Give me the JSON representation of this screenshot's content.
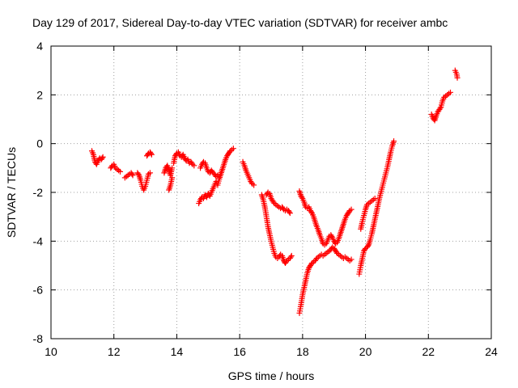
{
  "chart_data": {
    "type": "scatter",
    "title": "Day 129 of 2017, Sidereal Day-to-day VTEC variation (SDTVAR) for receiver ambc",
    "xlabel": "GPS time / hours",
    "ylabel": "SDTVAR / TECUs",
    "xlim": [
      10,
      24
    ],
    "ylim": [
      -8,
      4
    ],
    "xticks": [
      10,
      12,
      14,
      16,
      18,
      20,
      22,
      24
    ],
    "yticks": [
      -8,
      -6,
      -4,
      -2,
      0,
      2,
      4
    ],
    "grid": true,
    "marker": "+",
    "color": "#ff0000",
    "series": [
      {
        "name": "SDTVAR",
        "segments": [
          [
            [
              11.3,
              -0.3
            ],
            [
              11.35,
              -0.45
            ],
            [
              11.4,
              -0.75
            ],
            [
              11.45,
              -0.85
            ],
            [
              11.5,
              -0.7
            ],
            [
              11.55,
              -0.6
            ],
            [
              11.6,
              -0.65
            ],
            [
              11.65,
              -0.55
            ]
          ],
          [
            [
              11.9,
              -1.0
            ],
            [
              11.95,
              -0.9
            ],
            [
              12.0,
              -0.85
            ],
            [
              12.05,
              -1.0
            ],
            [
              12.1,
              -1.05
            ],
            [
              12.15,
              -1.1
            ],
            [
              12.2,
              -1.15
            ]
          ],
          [
            [
              12.35,
              -1.4
            ],
            [
              12.4,
              -1.35
            ],
            [
              12.45,
              -1.3
            ],
            [
              12.5,
              -1.25
            ],
            [
              12.55,
              -1.2
            ],
            [
              12.6,
              -1.3
            ]
          ],
          [
            [
              12.75,
              -1.2
            ],
            [
              12.8,
              -1.3
            ],
            [
              12.85,
              -1.5
            ],
            [
              12.9,
              -1.75
            ],
            [
              12.95,
              -1.9
            ],
            [
              13.0,
              -1.75
            ],
            [
              13.05,
              -1.5
            ],
            [
              13.1,
              -1.25
            ],
            [
              13.15,
              -1.2
            ]
          ],
          [
            [
              13.05,
              -0.5
            ],
            [
              13.1,
              -0.4
            ],
            [
              13.15,
              -0.35
            ],
            [
              13.2,
              -0.45
            ]
          ],
          [
            [
              13.6,
              -1.2
            ],
            [
              13.65,
              -1.0
            ],
            [
              13.7,
              -0.9
            ],
            [
              13.75,
              -1.1
            ],
            [
              13.8,
              -1.3
            ],
            [
              13.85,
              -1.0
            ]
          ],
          [
            [
              13.75,
              -1.9
            ],
            [
              13.8,
              -1.7
            ],
            [
              13.85,
              -1.4
            ]
          ],
          [
            [
              13.9,
              -0.8
            ],
            [
              13.95,
              -0.5
            ],
            [
              14.0,
              -0.4
            ],
            [
              14.05,
              -0.35
            ],
            [
              14.1,
              -0.5
            ],
            [
              14.15,
              -0.55
            ],
            [
              14.2,
              -0.45
            ],
            [
              14.25,
              -0.6
            ],
            [
              14.3,
              -0.7
            ],
            [
              14.35,
              -0.65
            ],
            [
              14.4,
              -0.8
            ],
            [
              14.45,
              -0.75
            ],
            [
              14.5,
              -0.85
            ],
            [
              14.55,
              -0.9
            ]
          ],
          [
            [
              14.75,
              -1.0
            ],
            [
              14.8,
              -0.85
            ],
            [
              14.85,
              -0.75
            ],
            [
              14.9,
              -0.8
            ],
            [
              14.95,
              -1.0
            ],
            [
              15.0,
              -1.15
            ],
            [
              15.05,
              -1.2
            ],
            [
              15.1,
              -1.1
            ],
            [
              15.15,
              -1.2
            ],
            [
              15.2,
              -1.25
            ],
            [
              15.25,
              -1.35
            ],
            [
              15.3,
              -1.3
            ]
          ],
          [
            [
              14.7,
              -2.45
            ],
            [
              14.75,
              -2.3
            ],
            [
              14.8,
              -2.2
            ],
            [
              14.85,
              -2.25
            ],
            [
              14.9,
              -2.1
            ],
            [
              14.95,
              -2.2
            ],
            [
              15.0,
              -2.05
            ],
            [
              15.05,
              -2.15
            ],
            [
              15.1,
              -2.0
            ],
            [
              15.15,
              -1.85
            ],
            [
              15.2,
              -1.7
            ],
            [
              15.25,
              -1.55
            ],
            [
              15.3,
              -1.7
            ],
            [
              15.35,
              -1.45
            ],
            [
              15.4,
              -1.25
            ],
            [
              15.45,
              -1.05
            ],
            [
              15.5,
              -0.85
            ],
            [
              15.55,
              -0.65
            ],
            [
              15.6,
              -0.5
            ],
            [
              15.65,
              -0.4
            ],
            [
              15.7,
              -0.3
            ],
            [
              15.75,
              -0.25
            ],
            [
              15.8,
              -0.2
            ]
          ],
          [
            [
              16.1,
              -0.75
            ],
            [
              16.15,
              -0.9
            ],
            [
              16.2,
              -1.1
            ],
            [
              16.25,
              -1.25
            ],
            [
              16.3,
              -1.4
            ],
            [
              16.35,
              -1.55
            ],
            [
              16.4,
              -1.65
            ],
            [
              16.45,
              -1.7
            ]
          ],
          [
            [
              16.7,
              -2.1
            ],
            [
              16.75,
              -2.3
            ],
            [
              16.8,
              -2.6
            ],
            [
              16.85,
              -3.0
            ],
            [
              16.9,
              -3.4
            ],
            [
              16.95,
              -3.7
            ],
            [
              17.0,
              -4.0
            ],
            [
              17.05,
              -4.25
            ],
            [
              17.1,
              -4.5
            ],
            [
              17.15,
              -4.65
            ],
            [
              17.2,
              -4.7
            ],
            [
              17.25,
              -4.65
            ],
            [
              17.3,
              -4.55
            ],
            [
              17.35,
              -4.6
            ],
            [
              17.4,
              -4.8
            ],
            [
              17.45,
              -4.9
            ],
            [
              17.5,
              -4.8
            ],
            [
              17.55,
              -4.75
            ],
            [
              17.6,
              -4.7
            ],
            [
              17.65,
              -4.6
            ]
          ],
          [
            [
              16.85,
              -2.1
            ],
            [
              16.9,
              -2.0
            ],
            [
              16.95,
              -2.05
            ],
            [
              17.0,
              -2.25
            ],
            [
              17.05,
              -2.35
            ],
            [
              17.1,
              -2.45
            ],
            [
              17.15,
              -2.5
            ],
            [
              17.2,
              -2.55
            ],
            [
              17.25,
              -2.6
            ],
            [
              17.3,
              -2.65
            ],
            [
              17.35,
              -2.6
            ],
            [
              17.4,
              -2.7
            ],
            [
              17.45,
              -2.75
            ],
            [
              17.5,
              -2.7
            ],
            [
              17.55,
              -2.75
            ],
            [
              17.6,
              -2.85
            ]
          ],
          [
            [
              17.9,
              -1.95
            ],
            [
              17.95,
              -2.15
            ],
            [
              18.0,
              -2.25
            ],
            [
              18.05,
              -2.4
            ],
            [
              18.1,
              -2.6
            ],
            [
              18.15,
              -2.65
            ],
            [
              18.2,
              -2.6
            ],
            [
              18.25,
              -2.75
            ],
            [
              18.3,
              -2.85
            ],
            [
              18.35,
              -3.0
            ],
            [
              18.4,
              -3.2
            ],
            [
              18.45,
              -3.4
            ],
            [
              18.5,
              -3.55
            ],
            [
              18.55,
              -3.75
            ],
            [
              18.6,
              -3.9
            ],
            [
              18.65,
              -4.1
            ],
            [
              18.7,
              -4.15
            ],
            [
              18.75,
              -4.1
            ],
            [
              18.8,
              -3.95
            ],
            [
              18.85,
              -3.8
            ],
            [
              18.9,
              -3.75
            ],
            [
              18.95,
              -3.85
            ],
            [
              19.0,
              -4.0
            ],
            [
              19.05,
              -4.1
            ],
            [
              19.1,
              -4.05
            ],
            [
              19.15,
              -3.9
            ],
            [
              19.2,
              -3.7
            ],
            [
              19.25,
              -3.5
            ],
            [
              19.3,
              -3.3
            ],
            [
              19.35,
              -3.1
            ],
            [
              19.4,
              -2.95
            ],
            [
              19.45,
              -2.85
            ],
            [
              19.5,
              -2.75
            ],
            [
              19.55,
              -2.7
            ]
          ],
          [
            [
              17.9,
              -6.95
            ],
            [
              17.95,
              -6.6
            ],
            [
              18.0,
              -6.2
            ],
            [
              18.05,
              -5.9
            ],
            [
              18.1,
              -5.6
            ],
            [
              18.15,
              -5.3
            ],
            [
              18.2,
              -5.1
            ],
            [
              18.25,
              -5.0
            ],
            [
              18.3,
              -4.9
            ],
            [
              18.35,
              -4.85
            ],
            [
              18.4,
              -4.8
            ],
            [
              18.45,
              -4.7
            ],
            [
              18.5,
              -4.65
            ],
            [
              18.55,
              -4.6
            ],
            [
              18.6,
              -4.55
            ],
            [
              18.65,
              -4.6
            ],
            [
              18.7,
              -4.55
            ],
            [
              18.75,
              -4.5
            ],
            [
              18.8,
              -4.45
            ],
            [
              18.85,
              -4.4
            ],
            [
              18.9,
              -4.35
            ],
            [
              18.95,
              -4.25
            ],
            [
              19.0,
              -4.3
            ],
            [
              19.05,
              -4.4
            ],
            [
              19.1,
              -4.5
            ],
            [
              19.15,
              -4.55
            ],
            [
              19.2,
              -4.6
            ],
            [
              19.25,
              -4.65
            ],
            [
              19.3,
              -4.7
            ],
            [
              19.35,
              -4.65
            ],
            [
              19.4,
              -4.7
            ],
            [
              19.45,
              -4.75
            ],
            [
              19.5,
              -4.8
            ],
            [
              19.55,
              -4.75
            ]
          ],
          [
            [
              19.8,
              -5.35
            ],
            [
              19.85,
              -5.0
            ],
            [
              19.9,
              -4.7
            ],
            [
              19.95,
              -4.4
            ],
            [
              20.0,
              -4.3
            ],
            [
              20.05,
              -4.25
            ],
            [
              20.1,
              -4.15
            ],
            [
              20.15,
              -3.95
            ],
            [
              20.2,
              -3.7
            ],
            [
              20.25,
              -3.4
            ],
            [
              20.3,
              -3.1
            ],
            [
              20.35,
              -2.8
            ],
            [
              20.4,
              -2.5
            ],
            [
              20.45,
              -2.2
            ],
            [
              20.5,
              -1.95
            ],
            [
              20.55,
              -1.7
            ],
            [
              20.6,
              -1.45
            ],
            [
              20.65,
              -1.2
            ],
            [
              20.7,
              -0.95
            ],
            [
              20.75,
              -0.65
            ],
            [
              20.8,
              -0.35
            ],
            [
              20.85,
              -0.1
            ],
            [
              20.9,
              0.1
            ]
          ],
          [
            [
              19.85,
              -3.5
            ],
            [
              19.9,
              -3.2
            ],
            [
              19.95,
              -2.95
            ],
            [
              20.0,
              -2.7
            ],
            [
              20.05,
              -2.5
            ],
            [
              20.1,
              -2.45
            ],
            [
              20.15,
              -2.4
            ],
            [
              20.2,
              -2.35
            ],
            [
              20.25,
              -2.3
            ],
            [
              20.3,
              -2.25
            ]
          ],
          [
            [
              22.1,
              1.2
            ],
            [
              22.15,
              1.05
            ],
            [
              22.2,
              0.95
            ],
            [
              22.25,
              1.15
            ],
            [
              22.3,
              1.3
            ],
            [
              22.35,
              1.4
            ],
            [
              22.4,
              1.5
            ],
            [
              22.45,
              1.75
            ],
            [
              22.5,
              1.9
            ],
            [
              22.55,
              1.95
            ],
            [
              22.6,
              2.0
            ],
            [
              22.65,
              2.05
            ],
            [
              22.7,
              2.1
            ]
          ],
          [
            [
              22.85,
              3.0
            ],
            [
              22.9,
              2.85
            ],
            [
              22.92,
              2.7
            ]
          ]
        ]
      }
    ]
  }
}
